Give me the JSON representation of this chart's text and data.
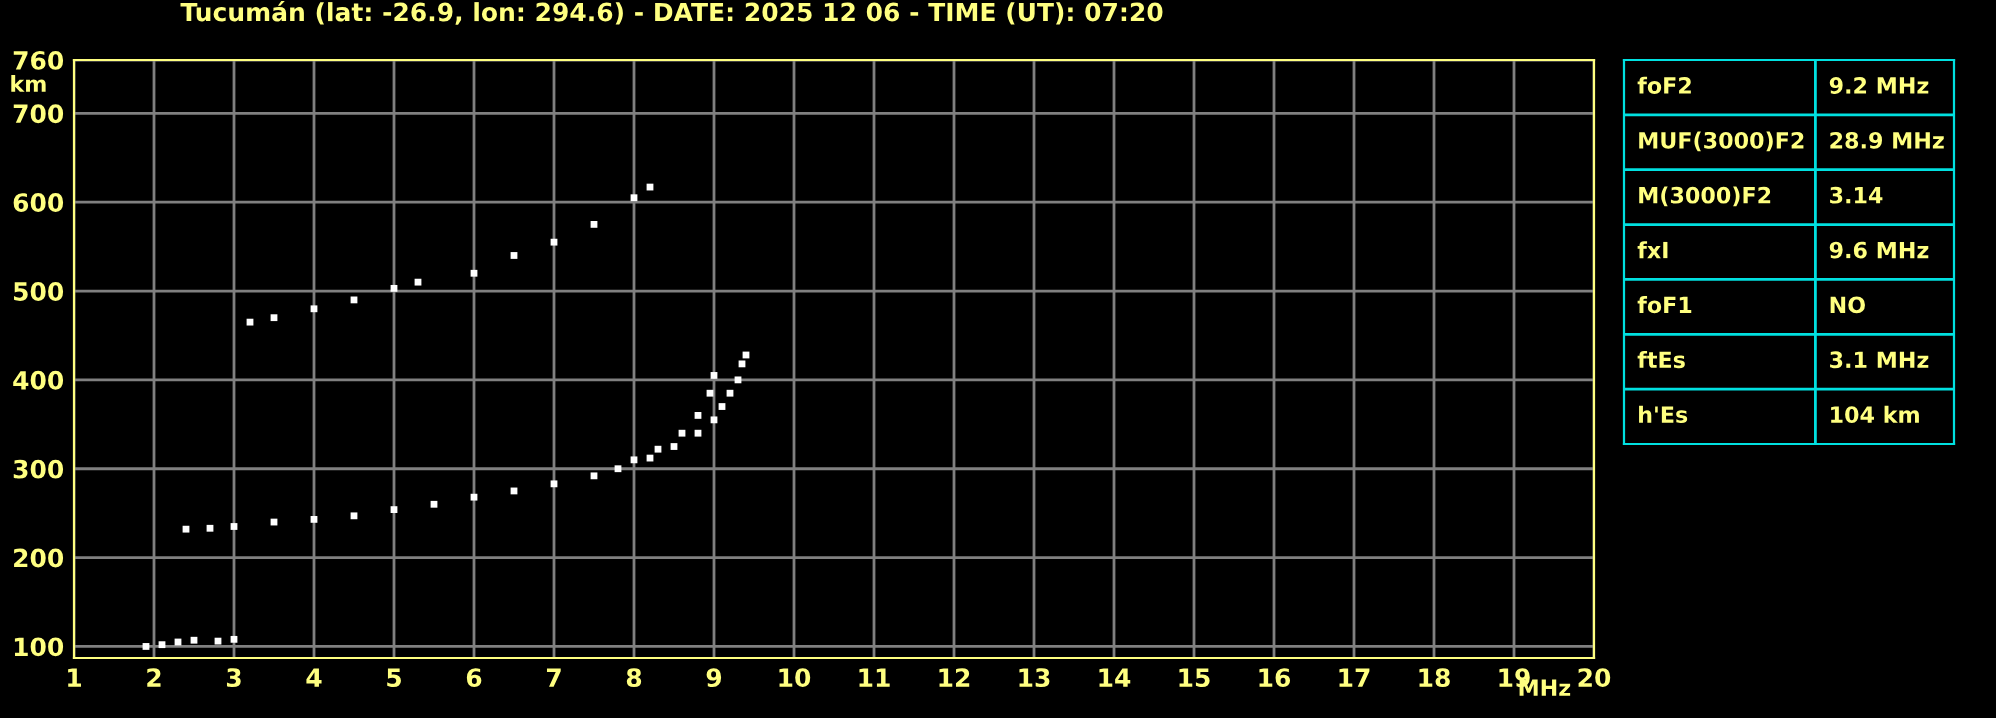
{
  "chart_data": [
    {
      "type": "scatter",
      "title": "Tucumán (lat: -26.9, lon: 294.6) - DATE: 2025 12 06 - TIME (UT): 07:20",
      "xlabel": "MHz",
      "ylabel": "km",
      "marker": "square",
      "grid": true,
      "xlim": [
        1,
        20
      ],
      "xticks": [
        1,
        2,
        3,
        4,
        5,
        6,
        7,
        8,
        9,
        10,
        11,
        12,
        13,
        14,
        15,
        16,
        17,
        18,
        19,
        20
      ],
      "ylim": [
        87,
        760
      ],
      "yticks": [
        100,
        200,
        300,
        400,
        500,
        600,
        700,
        760
      ],
      "series": [
        {
          "color": "#ffffff",
          "x": [
            2.4,
            2.7,
            3.0,
            3.5,
            4.0,
            4.5,
            5.0,
            5.5,
            6.0,
            6.5,
            7.0,
            7.5,
            7.8,
            8.0,
            8.3,
            8.6,
            8.8,
            8.95,
            9.0
          ],
          "values": [
            232,
            233,
            235,
            240,
            243,
            247,
            254,
            260,
            268,
            275,
            283,
            292,
            300,
            310,
            322,
            340,
            360,
            385,
            405
          ]
        },
        {
          "color": "#ffffff",
          "x": [
            8.2,
            8.5,
            8.8,
            9.0,
            9.1,
            9.2,
            9.3,
            9.35,
            9.4
          ],
          "values": [
            312,
            325,
            340,
            355,
            370,
            385,
            400,
            418,
            428
          ]
        },
        {
          "color": "#ffffff",
          "x": [
            3.2,
            3.5,
            4.0,
            4.5,
            5.0,
            5.3,
            6.0,
            6.5,
            7.0,
            7.5,
            8.0,
            8.2
          ],
          "values": [
            465,
            470,
            480,
            490,
            503,
            510,
            520,
            540,
            555,
            575,
            605,
            617
          ]
        },
        {
          "color": "#ffffff",
          "x": [
            1.9,
            2.1,
            2.3,
            2.5,
            2.8,
            3.0
          ],
          "values": [
            100,
            102,
            105,
            107,
            106,
            108
          ]
        }
      ]
    },
    {
      "type": "other",
      "annotations": [
        "foF2",
        "9.2 MHz",
        "MUF(3000)F2",
        "28.9 MHz",
        "M(3000)F2",
        "3.14",
        "fxI",
        "9.6 MHz",
        "foF1",
        "NO",
        "ftEs",
        "3.1 MHz",
        "h'Es",
        "104 km"
      ]
    }
  ]
}
